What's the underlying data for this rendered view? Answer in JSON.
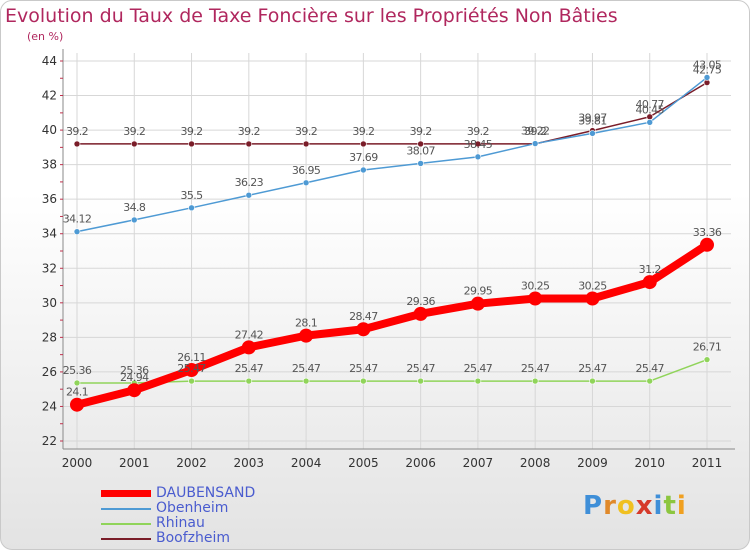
{
  "chart_data": {
    "type": "line",
    "title": "Evolution du Taux de Taxe Foncière sur les Propriétés Non Bâties",
    "ylabel": "(en %)",
    "xlabel": "",
    "categories": [
      "2000",
      "2001",
      "2002",
      "2003",
      "2004",
      "2005",
      "2006",
      "2007",
      "2008",
      "2009",
      "2010",
      "2011"
    ],
    "ylim": [
      22,
      44
    ],
    "yticks": [
      22,
      24,
      26,
      28,
      30,
      32,
      34,
      36,
      38,
      40,
      42,
      44
    ],
    "grid": true,
    "legend_position": "bottom-left",
    "series": [
      {
        "name": "DAUBENSAND",
        "color": "#ff0000",
        "values": [
          24.1,
          24.94,
          26.11,
          27.42,
          28.1,
          28.47,
          29.36,
          29.95,
          30.25,
          30.25,
          31.2,
          33.36
        ],
        "labels": [
          "24.1",
          "24.94",
          "26.11",
          "27.42",
          "28.1",
          "28.47",
          "29.36",
          "29.95",
          "30.25",
          "30.25",
          "31.2",
          "33.36"
        ]
      },
      {
        "name": "Obenheim",
        "color": "#4e9ad4",
        "values": [
          34.12,
          34.8,
          35.5,
          36.23,
          36.95,
          37.69,
          38.07,
          38.45,
          39.22,
          39.81,
          40.45,
          43.05
        ],
        "labels": [
          "34.12",
          "34.8",
          "35.5",
          "36.23",
          "36.95",
          "37.69",
          "38.07",
          "38.45",
          "39.22",
          "39.81",
          "40.45",
          "43.05"
        ]
      },
      {
        "name": "Rhinau",
        "color": "#90d45a",
        "values": [
          25.36,
          25.36,
          25.47,
          25.47,
          25.47,
          25.47,
          25.47,
          25.47,
          25.47,
          25.47,
          25.47,
          26.71
        ],
        "labels": [
          "25.36",
          "25.36",
          "25.47",
          "25.47",
          "25.47",
          "25.47",
          "25.47",
          "25.47",
          "25.47",
          "25.47",
          "25.47",
          "26.71"
        ]
      },
      {
        "name": "Boofzheim",
        "color": "#7a1d29",
        "values": [
          39.2,
          39.2,
          39.2,
          39.2,
          39.2,
          39.2,
          39.2,
          39.2,
          39.2,
          39.97,
          40.77,
          42.75
        ],
        "labels": [
          "39.2",
          "39.2",
          "39.2",
          "39.2",
          "39.2",
          "39.2",
          "39.2",
          "39.2",
          "39.2",
          "39.97",
          "40.77",
          "42.75"
        ]
      }
    ]
  },
  "legend": {
    "items": [
      {
        "name": "DAUBENSAND",
        "color": "#ff0000"
      },
      {
        "name": "Obenheim",
        "color": "#4e9ad4"
      },
      {
        "name": "Rhinau",
        "color": "#90d45a"
      },
      {
        "name": "Boofzheim",
        "color": "#7a1d29"
      }
    ]
  },
  "branding": {
    "logo_letters": [
      {
        "char": "P",
        "color": "#3f8fd8"
      },
      {
        "char": "r",
        "color": "#e0892a"
      },
      {
        "char": "o",
        "color": "#f0c020"
      },
      {
        "char": "x",
        "color": "#d63a2a"
      },
      {
        "char": "i",
        "color": "#3f8fd8"
      },
      {
        "char": "t",
        "color": "#8cc63f"
      },
      {
        "char": "i",
        "color": "#f0a020"
      }
    ]
  },
  "colors": {
    "title": "#b0275e",
    "axis": "#8a8a8a",
    "grid": "#d7d7d7",
    "legend_text": "#4a5ccf"
  }
}
